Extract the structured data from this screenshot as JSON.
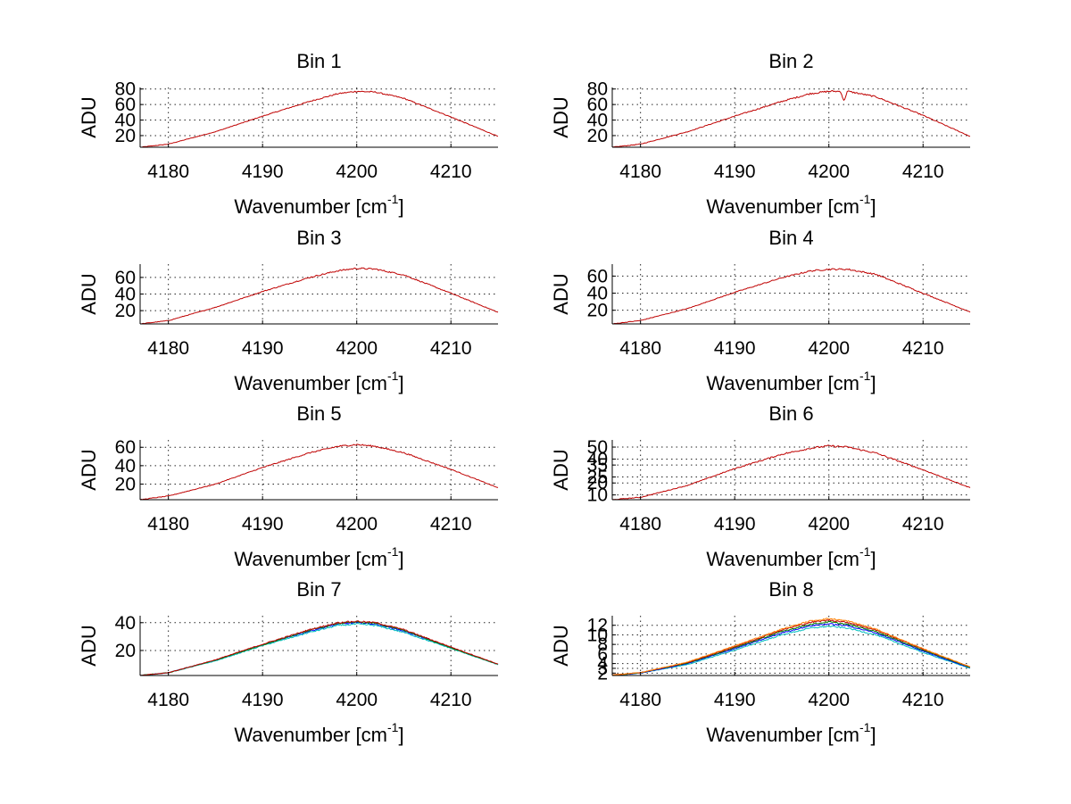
{
  "chart_data": [
    {
      "type": "line",
      "title": "Bin 1",
      "xlabel": "Wavenumber [cm",
      "xlabel_sup": "-1",
      "xlabel_end": "]",
      "ylabel": "ADU",
      "xlim": [
        4177,
        4215
      ],
      "ylim": [
        5,
        82
      ],
      "xticks": [
        4180,
        4190,
        4200,
        4210
      ],
      "yticks": [
        20,
        40,
        60,
        80
      ],
      "series": [
        {
          "name": "trace",
          "color": "#bf0000",
          "noise": 0.9,
          "peak_x": 4200.5,
          "x": [
            4177,
            4180,
            4185,
            4190,
            4195,
            4198,
            4200,
            4202,
            4205,
            4210,
            4215
          ],
          "y": [
            5,
            9,
            25,
            45,
            64,
            74,
            77,
            76,
            68,
            44,
            19
          ]
        }
      ]
    },
    {
      "type": "line",
      "title": "Bin 2",
      "xlabel": "Wavenumber [cm",
      "xlabel_sup": "-1",
      "xlabel_end": "]",
      "ylabel": "ADU",
      "xlim": [
        4177,
        4215
      ],
      "ylim": [
        5,
        82
      ],
      "xticks": [
        4180,
        4190,
        4200,
        4210
      ],
      "yticks": [
        20,
        40,
        60,
        80
      ],
      "series": [
        {
          "name": "trace",
          "color": "#bf0000",
          "noise": 1.2,
          "peak_x": 4200.5,
          "dips": [
            {
              "x": 4201.6,
              "depth": 13
            }
          ],
          "x": [
            4177,
            4180,
            4185,
            4190,
            4195,
            4198,
            4200,
            4202,
            4205,
            4210,
            4215
          ],
          "y": [
            5,
            9,
            25,
            45,
            64,
            74,
            77,
            77,
            70,
            46,
            19
          ]
        }
      ]
    },
    {
      "type": "line",
      "title": "Bin 3",
      "xlabel": "Wavenumber [cm",
      "xlabel_sup": "-1",
      "xlabel_end": "]",
      "ylabel": "ADU",
      "xlim": [
        4177,
        4215
      ],
      "ylim": [
        4,
        76
      ],
      "xticks": [
        4180,
        4190,
        4200,
        4210
      ],
      "yticks": [
        20,
        40,
        60
      ],
      "series": [
        {
          "name": "trace",
          "color": "#bf0000",
          "noise": 1.0,
          "peak_x": 4200.5,
          "x": [
            4177,
            4180,
            4185,
            4190,
            4195,
            4198,
            4200,
            4202,
            4205,
            4210,
            4215
          ],
          "y": [
            4,
            8,
            24,
            43,
            60,
            68,
            71,
            70,
            63,
            41,
            18
          ]
        }
      ]
    },
    {
      "type": "line",
      "title": "Bin 4",
      "xlabel": "Wavenumber [cm",
      "xlabel_sup": "-1",
      "xlabel_end": "]",
      "ylabel": "ADU",
      "xlim": [
        4177,
        4215
      ],
      "ylim": [
        4,
        74
      ],
      "xticks": [
        4180,
        4190,
        4200,
        4210
      ],
      "yticks": [
        20,
        40,
        60
      ],
      "series": [
        {
          "name": "trace",
          "color": "#bf0000",
          "noise": 1.0,
          "peak_x": 4201,
          "x": [
            4177,
            4180,
            4185,
            4190,
            4195,
            4198,
            4200,
            4202,
            4205,
            4210,
            4215
          ],
          "y": [
            4,
            8,
            22,
            41,
            58,
            66,
            68,
            68,
            62,
            40,
            18
          ]
        }
      ]
    },
    {
      "type": "line",
      "title": "Bin 5",
      "xlabel": "Wavenumber [cm",
      "xlabel_sup": "-1",
      "xlabel_end": "]",
      "ylabel": "ADU",
      "xlim": [
        4177,
        4215
      ],
      "ylim": [
        3,
        68
      ],
      "xticks": [
        4180,
        4190,
        4200,
        4210
      ],
      "yticks": [
        20,
        40,
        60
      ],
      "series": [
        {
          "name": "trace",
          "color": "#bf0000",
          "noise": 0.9,
          "peak_x": 4199.5,
          "x": [
            4177,
            4180,
            4185,
            4190,
            4195,
            4198,
            4200,
            4202,
            4205,
            4210,
            4215
          ],
          "y": [
            3,
            7,
            20,
            38,
            54,
            61,
            63,
            61,
            54,
            36,
            16
          ]
        }
      ]
    },
    {
      "type": "line",
      "title": "Bin 6",
      "xlabel": "Wavenumber [cm",
      "xlabel_sup": "-1",
      "xlabel_end": "]",
      "ylabel": "ADU",
      "xlim": [
        4177,
        4215
      ],
      "ylim": [
        6,
        56
      ],
      "xticks": [
        4180,
        4190,
        4200,
        4210
      ],
      "yticks": [
        10,
        20,
        25,
        35,
        40,
        50
      ],
      "series": [
        {
          "name": "trace",
          "color": "#bf0000",
          "noise": 0.8,
          "peak_x": 4200,
          "x": [
            4177,
            4180,
            4185,
            4190,
            4195,
            4198,
            4200,
            4202,
            4205,
            4210,
            4215
          ],
          "y": [
            6,
            8,
            18,
            32,
            44,
            49,
            51,
            50,
            45,
            31,
            16
          ]
        }
      ]
    },
    {
      "type": "line",
      "title": "Bin 7",
      "xlabel": "Wavenumber [cm",
      "xlabel_sup": "-1",
      "xlabel_end": "]",
      "ylabel": "ADU",
      "xlim": [
        4177,
        4215
      ],
      "ylim": [
        2,
        45
      ],
      "xticks": [
        4180,
        4190,
        4200,
        4210
      ],
      "yticks": [
        20,
        40
      ],
      "series": [
        {
          "name": "blue",
          "color": "#0000ff",
          "noise": 0.6,
          "peak_x": 4199.5,
          "x": [
            4177,
            4180,
            4185,
            4190,
            4195,
            4198,
            4200,
            4202,
            4205,
            4210,
            4215
          ],
          "y": [
            2,
            4,
            13,
            24,
            34,
            39,
            40,
            39,
            34,
            22,
            10
          ]
        },
        {
          "name": "cyan",
          "color": "#00bfbf",
          "noise": 0.6,
          "peak_x": 4199.5,
          "x": [
            4177,
            4180,
            4185,
            4190,
            4195,
            4198,
            4200,
            4202,
            4205,
            4210,
            4215
          ],
          "y": [
            2,
            4,
            12.5,
            23.5,
            33,
            38,
            39,
            38,
            33,
            21.5,
            9.8
          ]
        },
        {
          "name": "green",
          "color": "#008000",
          "noise": 0.6,
          "peak_x": 4199.5,
          "x": [
            4177,
            4180,
            4185,
            4190,
            4195,
            4198,
            4200,
            4202,
            4205,
            4210,
            4215
          ],
          "y": [
            2,
            4,
            13,
            24,
            34.5,
            39.5,
            40.5,
            39.5,
            34.5,
            22,
            10
          ]
        },
        {
          "name": "red",
          "color": "#bf0000",
          "noise": 0.6,
          "peak_x": 4199.5,
          "x": [
            4177,
            4180,
            4185,
            4190,
            4195,
            4198,
            4200,
            4202,
            4205,
            4210,
            4215
          ],
          "y": [
            2,
            4,
            13.3,
            24.5,
            35,
            40,
            41,
            40,
            35,
            22.5,
            10.2
          ]
        }
      ]
    },
    {
      "type": "line",
      "title": "Bin 8",
      "xlabel": "Wavenumber [cm",
      "xlabel_sup": "-1",
      "xlabel_end": "]",
      "ylabel": "ADU",
      "xlim": [
        4177,
        4215
      ],
      "ylim": [
        1.5,
        14
      ],
      "xticks": [
        4180,
        4190,
        4200,
        4210
      ],
      "yticks": [
        2,
        3,
        4,
        6,
        8,
        10,
        12
      ],
      "series": [
        {
          "name": "cyan",
          "color": "#00bfbf",
          "noise": 0.15,
          "peak_x": 4200,
          "x": [
            4177,
            4180,
            4185,
            4190,
            4195,
            4198,
            4200,
            4202,
            4205,
            4210,
            4215
          ],
          "y": [
            1.5,
            2.0,
            3.8,
            6.8,
            10.0,
            11.4,
            11.8,
            11.4,
            10.0,
            6.3,
            3.0
          ]
        },
        {
          "name": "blue",
          "color": "#0000ff",
          "noise": 0.15,
          "peak_x": 4200,
          "x": [
            4177,
            4180,
            4185,
            4190,
            4195,
            4198,
            4200,
            4202,
            4205,
            4210,
            4215
          ],
          "y": [
            1.5,
            2.0,
            4.0,
            7.1,
            10.4,
            11.9,
            12.3,
            11.9,
            10.4,
            6.6,
            3.1
          ]
        },
        {
          "name": "green",
          "color": "#008000",
          "noise": 0.15,
          "peak_x": 4200,
          "x": [
            4177,
            4180,
            4185,
            4190,
            4195,
            4198,
            4200,
            4202,
            4205,
            4210,
            4215
          ],
          "y": [
            1.5,
            2.1,
            4.1,
            7.3,
            10.7,
            12.2,
            12.7,
            12.2,
            10.7,
            6.8,
            3.2
          ]
        },
        {
          "name": "red",
          "color": "#bf0000",
          "noise": 0.15,
          "peak_x": 4200,
          "x": [
            4177,
            4180,
            4185,
            4190,
            4195,
            4198,
            4200,
            4202,
            4205,
            4210,
            4215
          ],
          "y": [
            1.6,
            2.1,
            4.2,
            7.5,
            11.0,
            12.6,
            13.1,
            12.6,
            11.0,
            7.0,
            3.3
          ]
        },
        {
          "name": "orange",
          "color": "#ff8000",
          "noise": 0.15,
          "peak_x": 4200,
          "x": [
            4177,
            4180,
            4185,
            4190,
            4195,
            4198,
            4200,
            4202,
            4205,
            4210,
            4215
          ],
          "y": [
            1.6,
            2.1,
            4.3,
            7.7,
            11.2,
            12.9,
            13.4,
            12.9,
            11.2,
            7.1,
            3.3
          ]
        }
      ]
    }
  ]
}
